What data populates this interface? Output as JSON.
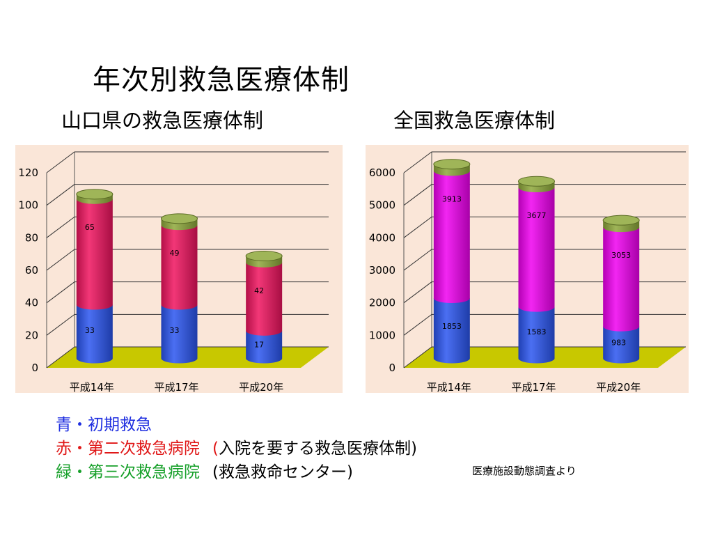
{
  "title": "年次別救急医療体制",
  "colors": {
    "blue": "#2b55f0",
    "red": "#f0145f",
    "magenta": "#f000f0",
    "green": "#8ea83a",
    "panel_bg": "#fae6d8",
    "floor": "#c8c800"
  },
  "legend": {
    "blue": "青・初期救急",
    "red_label": "赤・第二次救急病院",
    "red_paren": "(",
    "red_note": "入院を要する救急医療体制)",
    "green_label": "緑・第三次救急病院",
    "green_note": "(救急救命センター)"
  },
  "source": "医療施設動態調査より",
  "chart_data": [
    {
      "type": "bar",
      "stacked": true,
      "title": "山口県の救急医療体制",
      "categories": [
        "平成14年",
        "平成17年",
        "平成20年"
      ],
      "ylim": [
        0,
        120
      ],
      "yticks": [
        0,
        20,
        40,
        60,
        80,
        100,
        120
      ],
      "grid": true,
      "series": [
        {
          "color": "blue",
          "values": [
            33,
            33,
            17
          ]
        },
        {
          "color": "red",
          "values": [
            65,
            49,
            42
          ]
        },
        {
          "color": "green",
          "values": [
            3,
            4,
            4
          ]
        }
      ]
    },
    {
      "type": "bar",
      "stacked": true,
      "title": "全国救急医療体制",
      "categories": [
        "平成14年",
        "平成17年",
        "平成20年"
      ],
      "ylim": [
        0,
        6000
      ],
      "yticks": [
        0,
        1000,
        2000,
        3000,
        4000,
        5000,
        6000
      ],
      "grid": true,
      "series": [
        {
          "color": "blue",
          "values": [
            1853,
            1583,
            983
          ]
        },
        {
          "color": "magenta",
          "values": [
            3913,
            3677,
            3053
          ]
        },
        {
          "color": "green",
          "values": [
            208,
            188,
            214
          ]
        }
      ]
    }
  ]
}
